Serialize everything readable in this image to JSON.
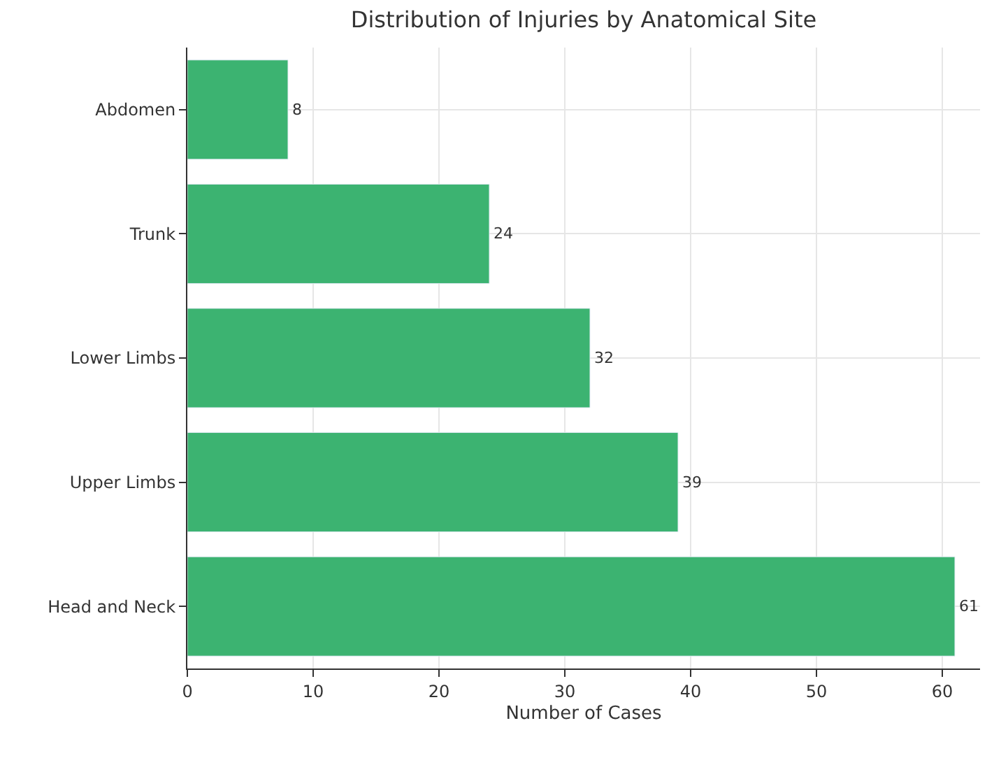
{
  "chart_data": {
    "type": "bar",
    "orientation": "horizontal",
    "title": "Distribution of Injuries by Anatomical Site",
    "xlabel": "Number of Cases",
    "categories": [
      "Abdomen",
      "Trunk",
      "Lower Limbs",
      "Upper Limbs",
      "Head and Neck"
    ],
    "values": [
      8,
      24,
      32,
      39,
      61
    ],
    "color": "#3cb371",
    "xlim": [
      0,
      63
    ],
    "xticks": [
      0,
      10,
      20,
      30,
      40,
      50,
      60
    ],
    "grid": true,
    "data_labels": true
  }
}
